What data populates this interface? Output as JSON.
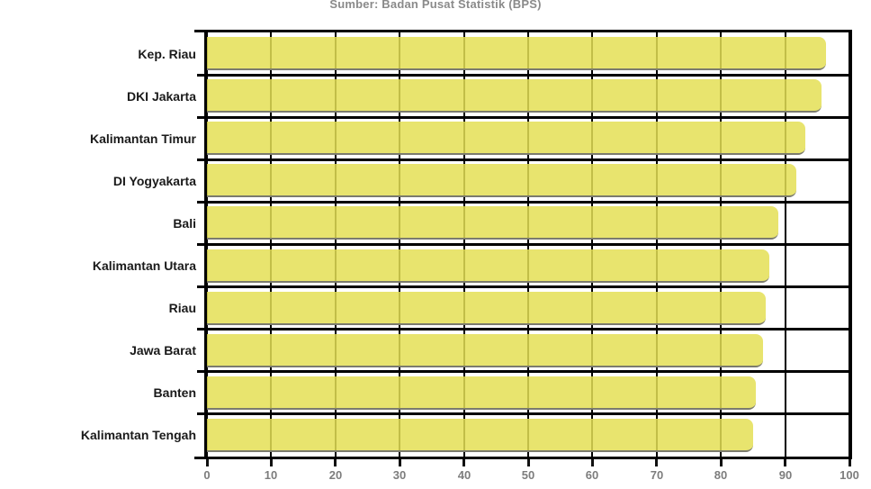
{
  "chart_data": {
    "type": "bar",
    "orientation": "horizontal",
    "title": "Sumber: Badan Pusat Statistik (BPS)",
    "categories": [
      "Kep. Riau",
      "DKI Jakarta",
      "Kalimantan Timur",
      "DI Yogyakarta",
      "Bali",
      "Kalimantan Utara",
      "Riau",
      "Jawa Barat",
      "Banten",
      "Kalimantan Tengah"
    ],
    "values": [
      96.3,
      95.7,
      93.2,
      91.8,
      89.0,
      87.5,
      87.0,
      86.6,
      85.4,
      85.0
    ],
    "xlabel": "",
    "ylabel": "",
    "xlim": [
      0,
      100
    ],
    "x_ticks": [
      0,
      10,
      20,
      30,
      40,
      50,
      60,
      70,
      80,
      90,
      100
    ],
    "grid": true,
    "legend": "none",
    "colors": {
      "bar_fill": "#e4df55",
      "bar_fill_opacity": 0.85,
      "bar_bottom_edge": "#7b7b6e",
      "grid_and_border": "#000000",
      "axis_tick_label": "#7d7d7d",
      "category_label": "#1a1a1a",
      "title": "#8a8a8a",
      "background": "#ffffff"
    }
  }
}
